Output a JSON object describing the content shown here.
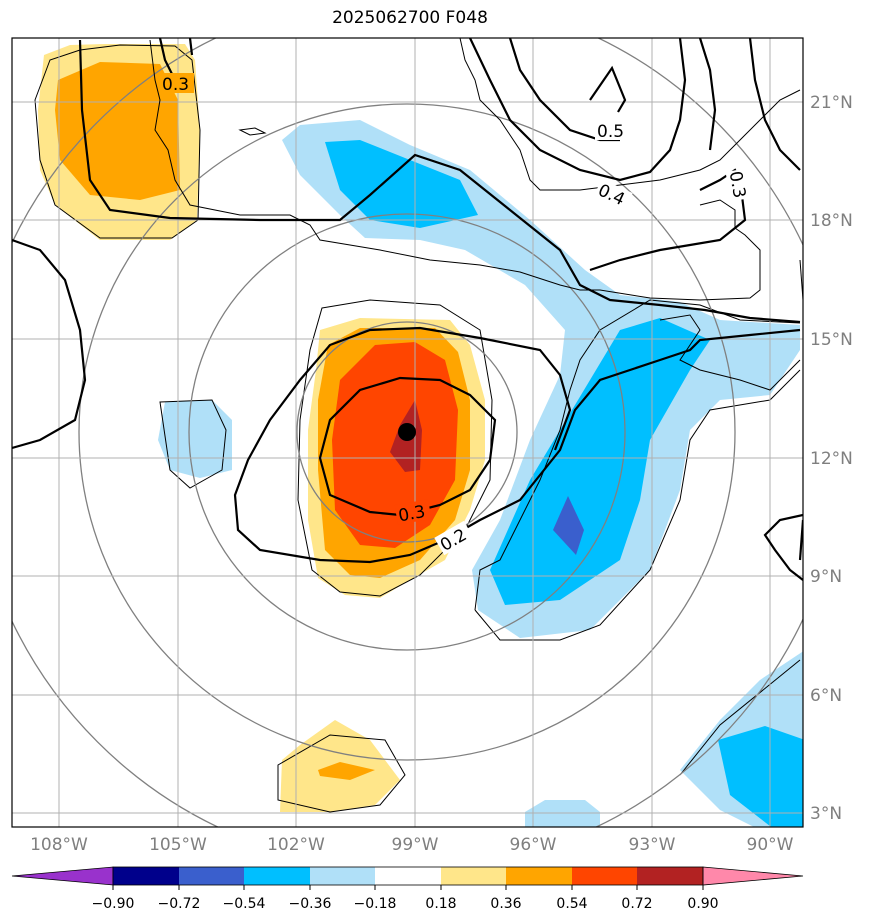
{
  "title": "2025062700 F048",
  "map": {
    "lon_labels": [
      "108°W",
      "105°W",
      "102°W",
      "99°W",
      "96°W",
      "93°W",
      "90°W"
    ],
    "lat_labels": [
      "21°N",
      "18°N",
      "15°N",
      "12°N",
      "9°N",
      "6°N",
      "3°N"
    ],
    "contour_labels": [
      "0.3",
      "0.5",
      "0.4",
      "0.3",
      "0.3",
      "0.2"
    ],
    "storm_center_marker": "black dot"
  },
  "colorbar": {
    "ticks": [
      "−0.90",
      "−0.72",
      "−0.54",
      "−0.36",
      "−0.18",
      "0.18",
      "0.36",
      "0.54",
      "0.72",
      "0.90"
    ],
    "colors": [
      "#9932cc",
      "#00008b",
      "#3a5fcd",
      "#00bfff",
      "#b0e0f8",
      "#ffffff",
      "#ffe68a",
      "#ffa500",
      "#ff4500",
      "#b22222",
      "#ff88aa"
    ]
  }
}
